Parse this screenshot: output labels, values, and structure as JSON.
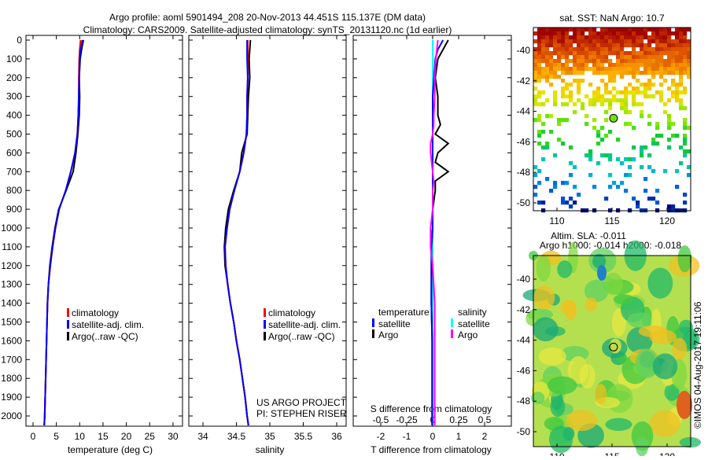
{
  "title_line1": "Argo profile: aoml 5901494_208 20-Nov-2013 44.451S 115.137E (DM data)",
  "title_line2": "Climatology: CARS2009. Satellite-adjusted climatology: synTS_20131120.nc (1d earlier)",
  "colors": {
    "climatology": "#ff0000",
    "satellite": "#0000ff",
    "argo": "#000000",
    "sal_satellite": "#00ffff",
    "sal_argo": "#ff00ff"
  },
  "credit": {
    "line1": "US ARGO PROJECT",
    "line2": "PI: STEPHEN RISER"
  },
  "stamp": "©IMOS 04-Aug-2017 19:11:06",
  "chart_data": [
    {
      "type": "line",
      "title": "",
      "xlabel": "temperature (deg C)",
      "ylabel": "",
      "xlim": [
        -1.5,
        31.5
      ],
      "ylim": [
        2050,
        0
      ],
      "xticks": [
        "0",
        "5",
        "10",
        "15",
        "20",
        "25",
        "30"
      ],
      "yticks": [
        "0",
        "100",
        "200",
        "300",
        "400",
        "500",
        "600",
        "700",
        "800",
        "900",
        "1000",
        "1100",
        "1200",
        "1300",
        "1400",
        "1500",
        "1600",
        "1700",
        "1800",
        "1900",
        "2000"
      ],
      "legend": [
        "climatology",
        "satellite-adj. clim.",
        "Argo(..raw -QC)"
      ],
      "depth": [
        0,
        50,
        100,
        200,
        300,
        400,
        500,
        600,
        700,
        800,
        900,
        1000,
        1100,
        1200,
        1300,
        1400,
        1500,
        1600,
        1700,
        1800,
        1900,
        2000,
        2050
      ],
      "series": [
        {
          "name": "climatology",
          "values": [
            10.2,
            10.0,
            9.9,
            9.8,
            9.8,
            9.7,
            9.5,
            9.0,
            8.1,
            7.0,
            5.6,
            4.8,
            4.2,
            3.7,
            3.3,
            3.1,
            3.0,
            2.9,
            2.8,
            2.7,
            2.6,
            2.5,
            2.4
          ]
        },
        {
          "name": "satellite-adj. clim.",
          "values": [
            10.6,
            10.2,
            10.0,
            9.9,
            9.8,
            9.7,
            9.5,
            9.0,
            8.1,
            7.0,
            5.6,
            4.8,
            4.2,
            3.7,
            3.3,
            3.1,
            3.0,
            2.9,
            2.8,
            2.7,
            2.6,
            2.5,
            2.4
          ]
        },
        {
          "name": "Argo(..raw -QC)",
          "values": [
            10.8,
            10.4,
            10.1,
            9.9,
            10.0,
            9.9,
            9.6,
            9.2,
            8.6,
            7.1,
            5.5,
            4.7,
            4.1,
            3.6,
            3.3,
            3.1,
            3.0,
            2.9,
            2.8,
            2.7,
            2.6,
            2.5,
            2.4
          ]
        }
      ]
    },
    {
      "type": "line",
      "xlabel": "salinity",
      "xlim": [
        33.8,
        36.1
      ],
      "ylim": [
        2050,
        0
      ],
      "xticks": [
        "34",
        "34.5",
        "35",
        "35.5",
        "36"
      ],
      "legend": [
        "climatology",
        "satellite-adj. clim.",
        "Argo(..raw -QC)"
      ],
      "depth": [
        0,
        100,
        200,
        300,
        400,
        500,
        600,
        700,
        800,
        900,
        1000,
        1100,
        1200,
        1300,
        1400,
        1500,
        1600,
        1700,
        1800,
        1900,
        2000,
        2050
      ],
      "series": [
        {
          "name": "climatology",
          "values": [
            34.67,
            34.67,
            34.67,
            34.66,
            34.66,
            34.65,
            34.61,
            34.55,
            34.47,
            34.4,
            34.36,
            34.33,
            34.34,
            34.37,
            34.41,
            34.46,
            34.5,
            34.55,
            34.59,
            34.63,
            34.66,
            34.68
          ]
        },
        {
          "name": "satellite-adj. clim.",
          "values": [
            34.66,
            34.66,
            34.67,
            34.66,
            34.66,
            34.65,
            34.61,
            34.55,
            34.47,
            34.4,
            34.36,
            34.33,
            34.34,
            34.37,
            34.41,
            34.46,
            34.5,
            34.55,
            34.59,
            34.63,
            34.66,
            34.68
          ]
        },
        {
          "name": "Argo(..raw -QC)",
          "values": [
            34.71,
            34.69,
            34.7,
            34.68,
            34.67,
            34.66,
            34.58,
            34.55,
            34.46,
            34.38,
            34.34,
            34.32,
            34.33,
            34.37,
            34.41,
            34.46,
            34.5,
            34.55,
            34.59,
            34.63,
            34.66,
            34.68
          ]
        }
      ]
    },
    {
      "type": "line",
      "xlabel": "T difference from climatology",
      "x2label": "S difference from climatology",
      "xlim": [
        -3,
        3
      ],
      "ylim": [
        2050,
        0
      ],
      "xticks": [
        "-2",
        "-1",
        "0",
        "1",
        "2"
      ],
      "x2ticks": [
        "-0.5",
        "-0.25",
        "0",
        "0.25",
        "0.5"
      ],
      "legend_temperature": "temperature",
      "legend_salinity": "salinity",
      "legend_satellite": "satellite",
      "legend_argo": "Argo",
      "depth": [
        0,
        50,
        100,
        200,
        300,
        400,
        450,
        500,
        550,
        600,
        650,
        700,
        750,
        800,
        900,
        1000,
        1100,
        1200,
        1400,
        1600,
        1800,
        2000,
        2050
      ],
      "series": [
        {
          "name": "T satellite",
          "values": [
            0.4,
            0.2,
            0.1,
            0.05,
            0.0,
            0.0,
            0.0,
            0.0,
            0.0,
            0.0,
            0.0,
            0.0,
            0.0,
            0.0,
            0.0,
            0.0,
            -0.05,
            -0.05,
            -0.05,
            -0.02,
            -0.02,
            -0.02,
            -0.02
          ]
        },
        {
          "name": "T Argo",
          "values": [
            0.6,
            0.4,
            0.2,
            0.1,
            0.2,
            0.2,
            0.3,
            0.1,
            0.6,
            0.2,
            0.1,
            0.6,
            0.1,
            0.1,
            0.0,
            0.0,
            -0.05,
            -0.05,
            -0.05,
            -0.02,
            -0.02,
            -0.02,
            -0.02
          ]
        },
        {
          "name": "S satellite",
          "values": [
            0.0,
            0.0,
            0.0,
            0.0,
            0.0,
            0.0,
            0.0,
            0.0,
            0.0,
            0.0,
            0.0,
            0.0,
            0.0,
            0.0,
            0.0,
            0.0,
            0.0,
            0.0,
            0.0,
            0.0,
            0.0,
            0.0,
            0.0
          ]
        },
        {
          "name": "S Argo",
          "values": [
            0.05,
            0.04,
            0.03,
            0.02,
            0.02,
            0.01,
            0.01,
            0.0,
            -0.02,
            -0.02,
            -0.01,
            0.0,
            0.01,
            0.0,
            0.0,
            -0.02,
            -0.02,
            0.0,
            0.02,
            0.02,
            0.02,
            0.02,
            0.02
          ]
        }
      ]
    },
    {
      "type": "heatmap",
      "title": "sat. SST: NaN Argo: 10.7",
      "xlim": [
        108,
        122.3
      ],
      "ylim": [
        -50.4,
        -38.5
      ],
      "xticks": [
        "110",
        "115",
        "120"
      ],
      "yticks": [
        "-40",
        "-42",
        "-44",
        "-46",
        "-48",
        "-50"
      ],
      "argo_position": {
        "lon": 115.137,
        "lat": -44.451
      }
    },
    {
      "type": "heatmap",
      "title_line1": "Altim. SLA: -0.011",
      "title_line2": "Argo h1000: -0.014 h2000: -0.018",
      "xlim": [
        108,
        122.3
      ],
      "ylim": [
        -50.4,
        -38.5
      ],
      "xticks": [
        "110",
        "115",
        "120"
      ],
      "yticks": [
        "-40",
        "-42",
        "-44",
        "-46",
        "-48",
        "-50"
      ],
      "argo_position": {
        "lon": 115.137,
        "lat": -44.451
      }
    }
  ]
}
